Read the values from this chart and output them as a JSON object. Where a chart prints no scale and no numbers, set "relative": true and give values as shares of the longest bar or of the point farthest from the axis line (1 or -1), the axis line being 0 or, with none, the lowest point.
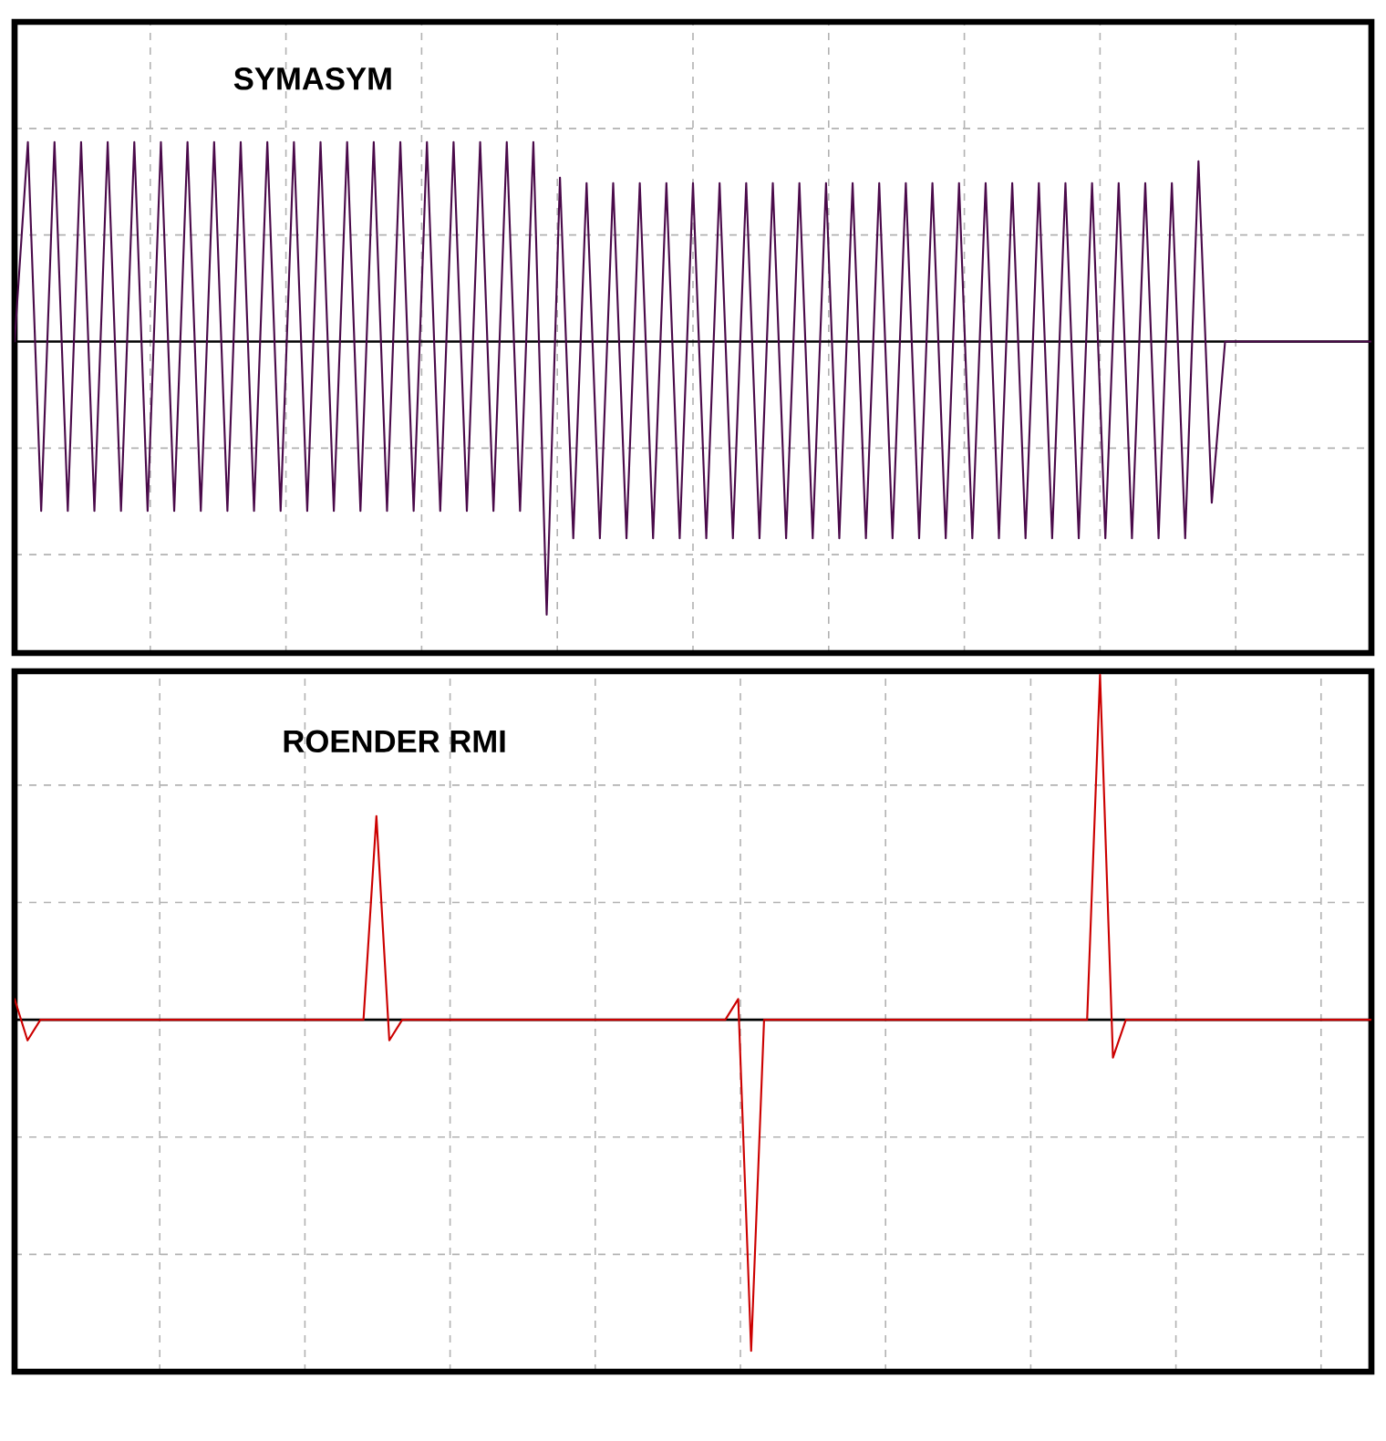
{
  "chart_data": [
    {
      "type": "line",
      "title": "SYMASYM",
      "relative": true,
      "grid": true,
      "categories": [
        null,
        null,
        null,
        null,
        null,
        null,
        null,
        null,
        null,
        null,
        null,
        null,
        null,
        null,
        null,
        null,
        null,
        null,
        null,
        null,
        null,
        null,
        null,
        null,
        null,
        null,
        null,
        null,
        null,
        null,
        null,
        null,
        null,
        null,
        null,
        null,
        null,
        null,
        null,
        null,
        null,
        null,
        null,
        null,
        null,
        null,
        null,
        null,
        null,
        null,
        null,
        null,
        null,
        null,
        null,
        null,
        null,
        null,
        null,
        null,
        null,
        null,
        null,
        null,
        null,
        null,
        null,
        null,
        null,
        null,
        null,
        null,
        null,
        null,
        null,
        null,
        null,
        null,
        null,
        null,
        null,
        null,
        null,
        null,
        null,
        null,
        null,
        null,
        null,
        null,
        null,
        null,
        null,
        null,
        null,
        null,
        null,
        null,
        null,
        null,
        null,
        null,
        null
      ],
      "series": [
        {
          "color": "#4a0a4a",
          "values": [
            0,
            0.73,
            -0.62,
            0.73,
            -0.62,
            0.73,
            -0.62,
            0.73,
            -0.62,
            0.73,
            -0.62,
            0.73,
            -0.62,
            0.73,
            -0.62,
            0.73,
            -0.62,
            0.73,
            -0.62,
            0.73,
            -0.62,
            0.73,
            -0.62,
            0.73,
            -0.62,
            0.73,
            -0.62,
            0.73,
            -0.62,
            0.73,
            -0.62,
            0.73,
            -0.62,
            0.73,
            -0.62,
            0.73,
            -0.62,
            0.73,
            -0.62,
            0.73,
            -1,
            0.6,
            -0.72,
            0.58,
            -0.72,
            0.58,
            -0.72,
            0.58,
            -0.72,
            0.58,
            -0.72,
            0.58,
            -0.72,
            0.58,
            -0.72,
            0.58,
            -0.72,
            0.58,
            -0.72,
            0.58,
            -0.72,
            0.58,
            -0.72,
            0.58,
            -0.72,
            0.58,
            -0.72,
            0.58,
            -0.72,
            0.58,
            -0.72,
            0.58,
            -0.72,
            0.58,
            -0.72,
            0.58,
            -0.72,
            0.58,
            -0.72,
            0.58,
            -0.72,
            0.58,
            -0.72,
            0.58,
            -0.72,
            0.58,
            -0.72,
            0.58,
            -0.72,
            0.66,
            -0.59,
            0,
            0,
            0,
            0,
            0,
            0,
            0,
            0,
            0,
            0,
            0,
            0
          ]
        }
      ]
    },
    {
      "type": "line",
      "title": "ROENDER RMI",
      "relative": true,
      "grid": true,
      "categories": [
        null,
        null,
        null,
        null,
        null,
        null,
        null,
        null,
        null,
        null,
        null,
        null,
        null,
        null,
        null,
        null,
        null,
        null,
        null,
        null,
        null,
        null,
        null,
        null,
        null,
        null,
        null,
        null,
        null,
        null,
        null,
        null,
        null,
        null,
        null,
        null,
        null,
        null,
        null,
        null,
        null,
        null,
        null,
        null,
        null,
        null,
        null,
        null,
        null,
        null,
        null,
        null,
        null,
        null,
        null,
        null,
        null,
        null,
        null,
        null,
        null,
        null,
        null,
        null,
        null,
        null,
        null,
        null,
        null,
        null,
        null,
        null,
        null,
        null,
        null,
        null,
        null,
        null,
        null,
        null,
        null,
        null,
        null,
        null,
        null,
        null,
        null,
        null,
        null,
        null,
        null,
        null,
        null,
        null,
        null,
        null,
        null,
        null,
        null,
        null,
        null,
        null,
        null,
        null,
        null,
        null
      ],
      "series": [
        {
          "color": "#cc0000",
          "values": [
            0.06,
            -0.06,
            0,
            0,
            0,
            0,
            0,
            0,
            0,
            0,
            0,
            0,
            0,
            0,
            0,
            0,
            0,
            0,
            0,
            0,
            0,
            0,
            0,
            0,
            0,
            0,
            0,
            0,
            0.59,
            -0.06,
            0,
            0,
            0,
            0,
            0,
            0,
            0,
            0,
            0,
            0,
            0,
            0,
            0,
            0,
            0,
            0,
            0,
            0,
            0,
            0,
            0,
            0,
            0,
            0,
            0,
            0,
            0.06,
            -0.96,
            0,
            0,
            0,
            0,
            0,
            0,
            0,
            0,
            0,
            0,
            0,
            0,
            0,
            0,
            0,
            0,
            0,
            0,
            0,
            0,
            0,
            0,
            0,
            0,
            0,
            0,
            1,
            -0.11,
            0,
            0,
            0,
            0,
            0,
            0,
            0,
            0,
            0,
            0,
            0,
            0,
            0,
            0,
            0,
            0,
            0,
            0,
            0,
            0
          ]
        }
      ]
    }
  ]
}
